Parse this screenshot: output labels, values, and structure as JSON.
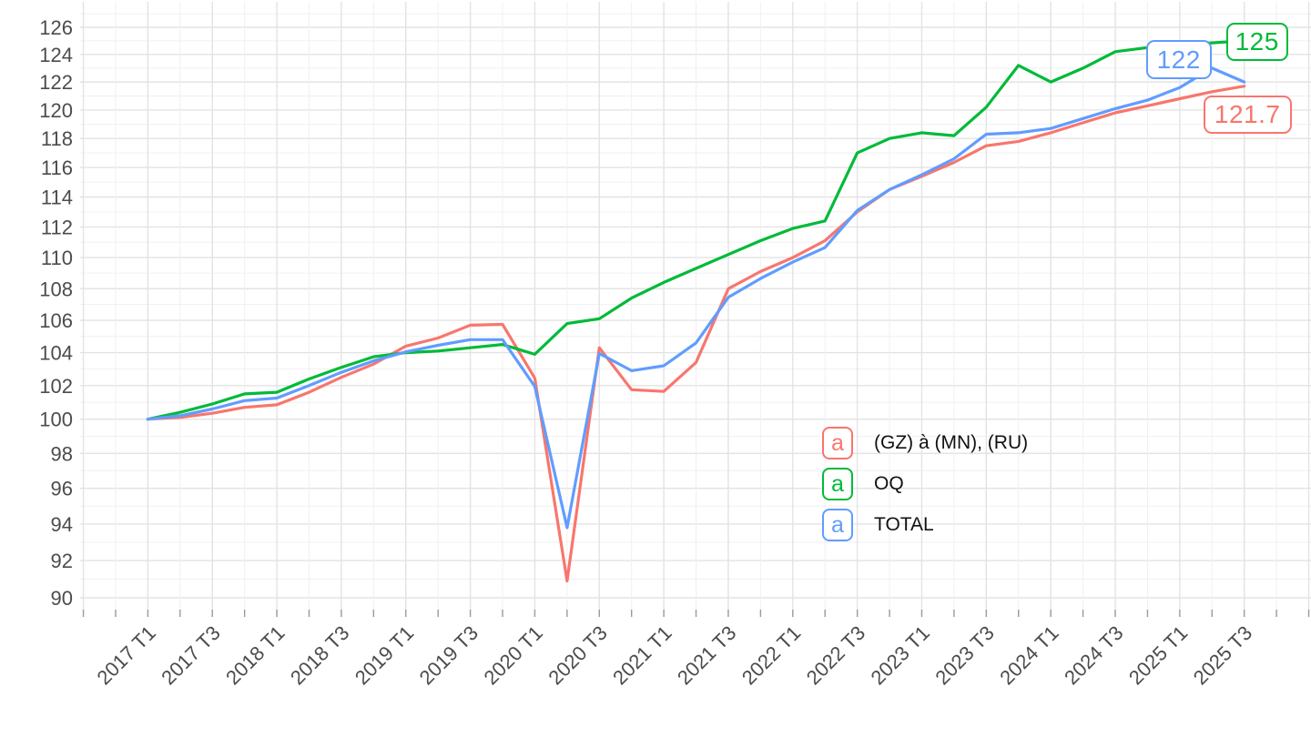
{
  "chart_data": {
    "type": "line",
    "title": "",
    "xlabel": "",
    "ylabel": "",
    "y_scale": "log",
    "grid": true,
    "legend_position": "inside-right-middle",
    "legend_key_glyph": "a",
    "y_ticks": [
      90,
      92,
      94,
      96,
      98,
      100,
      102,
      104,
      106,
      108,
      110,
      112,
      114,
      116,
      118,
      120,
      122,
      124,
      126
    ],
    "ylim": [
      89.5,
      127.5
    ],
    "x_tick_step": 2,
    "x": [
      "2017 T1",
      "2017 T2",
      "2017 T3",
      "2017 T4",
      "2018 T1",
      "2018 T2",
      "2018 T3",
      "2018 T4",
      "2019 T1",
      "2019 T2",
      "2019 T3",
      "2019 T4",
      "2020 T1",
      "2020 T2",
      "2020 T3",
      "2020 T4",
      "2021 T1",
      "2021 T2",
      "2021 T3",
      "2021 T4",
      "2022 T1",
      "2022 T2",
      "2022 T3",
      "2022 T4",
      "2023 T1",
      "2023 T2",
      "2023 T3",
      "2023 T4",
      "2024 T1",
      "2024 T2",
      "2024 T3",
      "2024 T4",
      "2025 T1",
      "2025 T2",
      "2025 T3"
    ],
    "series": [
      {
        "name": "(GZ) à (MN), (RU)",
        "color": "#F8766D",
        "end_label": "121.7",
        "values": [
          100,
          100.1,
          100.35,
          100.7,
          100.85,
          101.6,
          102.5,
          103.3,
          104.4,
          104.9,
          105.7,
          105.75,
          102.45,
          90.9,
          104.3,
          101.75,
          101.65,
          103.4,
          108,
          109.1,
          110,
          111.1,
          113,
          114.5,
          115.4,
          116.35,
          117.5,
          117.8,
          118.4,
          119.1,
          119.8,
          120.3,
          120.8,
          121.3,
          121.7
        ]
      },
      {
        "name": "OQ",
        "color": "#00BA38",
        "end_label": "125",
        "values": [
          100,
          100.4,
          100.9,
          101.5,
          101.6,
          102.4,
          103.1,
          103.75,
          104,
          104.1,
          104.3,
          104.5,
          103.9,
          105.8,
          106.1,
          107.4,
          108.4,
          109.3,
          110.2,
          111.1,
          111.9,
          112.4,
          117,
          118,
          118.4,
          118.2,
          120.2,
          123.2,
          122,
          123,
          124.2,
          124.5,
          124.7,
          124.85,
          125
        ]
      },
      {
        "name": "TOTAL",
        "color": "#619CFF",
        "end_label": "122",
        "values": [
          100,
          100.2,
          100.6,
          101.1,
          101.25,
          102,
          102.8,
          103.5,
          104.05,
          104.45,
          104.8,
          104.8,
          101.95,
          93.8,
          103.95,
          102.9,
          103.2,
          104.6,
          107.45,
          108.65,
          109.7,
          110.65,
          113.1,
          114.5,
          115.5,
          116.6,
          118.3,
          118.4,
          118.7,
          119.4,
          120.1,
          120.7,
          121.6,
          123,
          122
        ]
      }
    ]
  },
  "palette": {
    "grid_major": "#e3e3e3",
    "grid_minor": "#f0f0f0",
    "axis_text": "#4c4c4c",
    "background": "#ffffff"
  }
}
